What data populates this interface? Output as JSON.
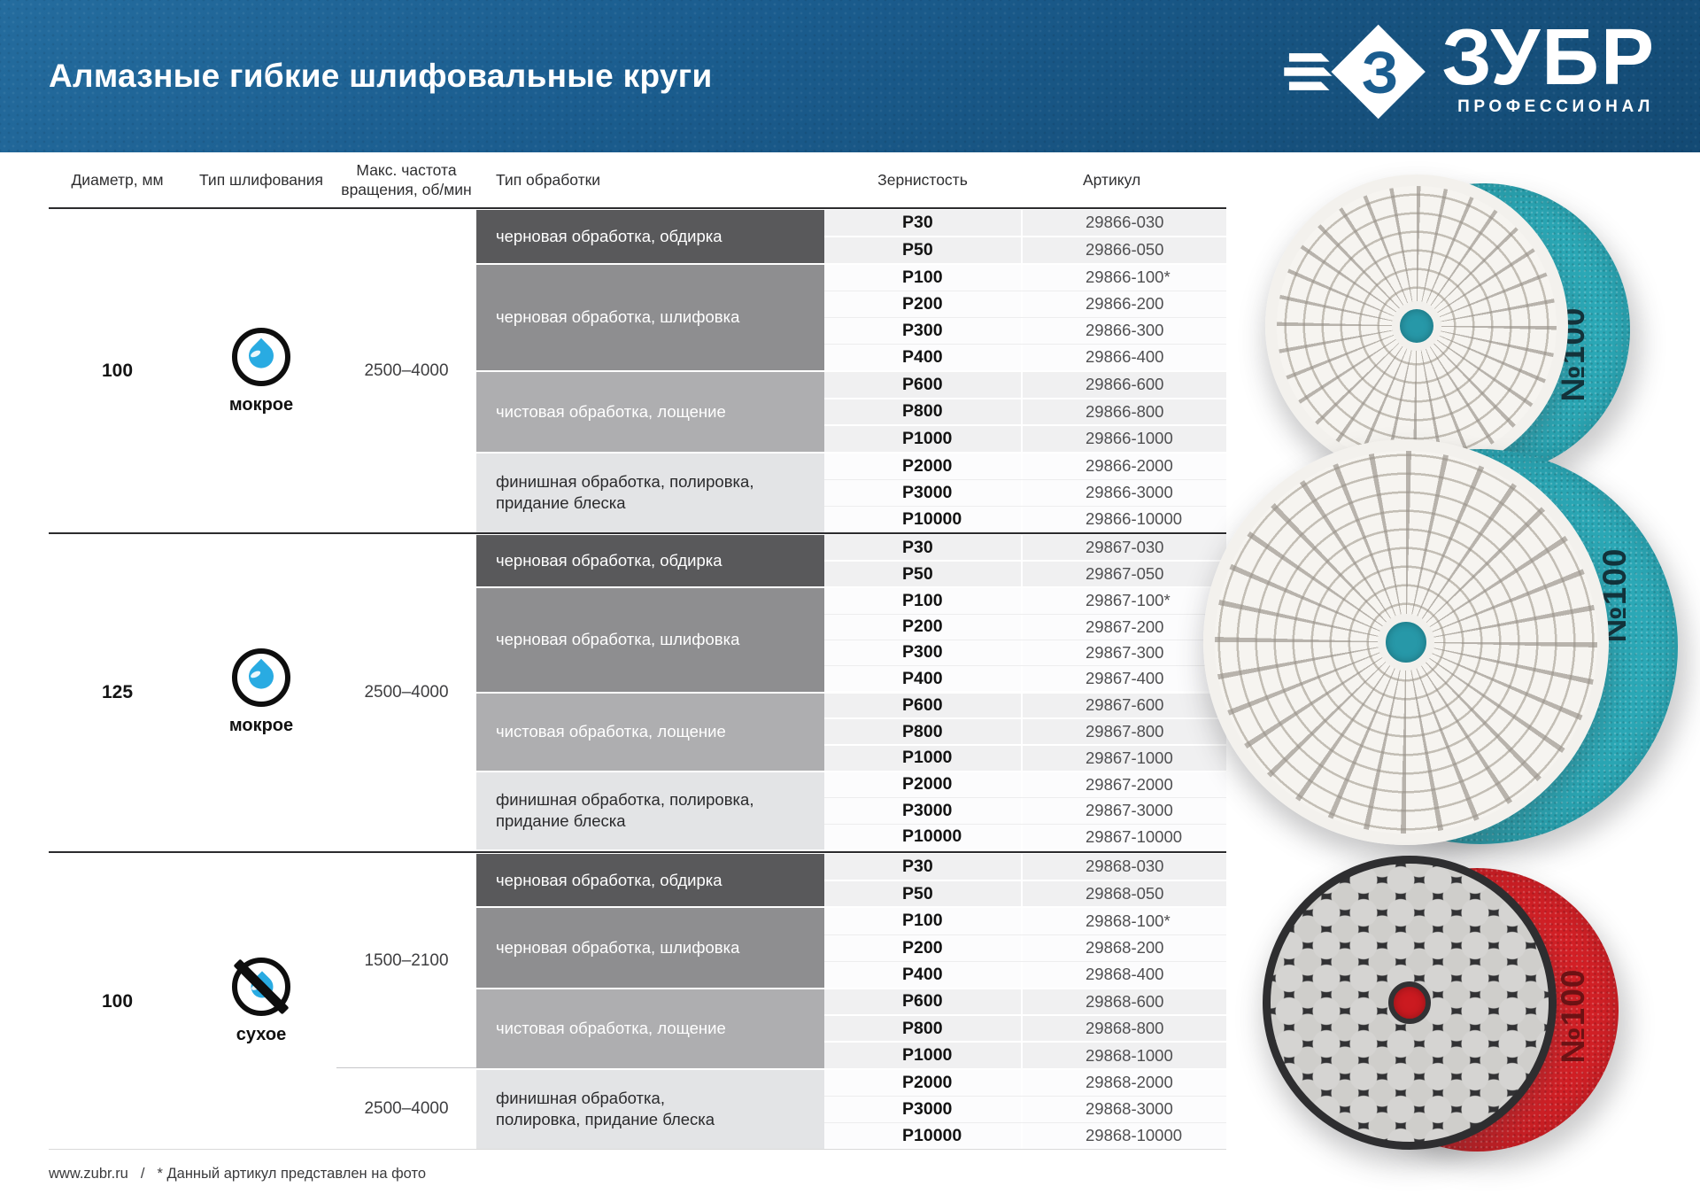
{
  "header": {
    "title": "Алмазные гибкие шлифовальные круги",
    "brand": "ЗУБР",
    "tagline": "ПРОФЕССИОНАЛ",
    "brand_mark_letter": "З"
  },
  "table": {
    "columns": {
      "diameter": "Диаметр, мм",
      "grind_type": "Тип шлифования",
      "rpm": "Макс. частота\nвращения, об/мин",
      "processing": "Тип обработки",
      "grit": "Зернистость",
      "sku": "Артикул"
    },
    "groups": [
      {
        "diameter": "100",
        "grind": {
          "label": "мокрое",
          "dry": false
        },
        "rpm": [
          {
            "value": "2500–4000",
            "rows": 12
          }
        ],
        "blocks": [
          {
            "label": "черновая обработка, обдирка",
            "rows": [
              [
                "P30",
                "29866-030"
              ],
              [
                "P50",
                "29866-050"
              ]
            ]
          },
          {
            "label": "черновая обработка, шлифовка",
            "rows": [
              [
                "P100",
                "29866-100*"
              ],
              [
                "P200",
                "29866-200"
              ],
              [
                "P300",
                "29866-300"
              ],
              [
                "P400",
                "29866-400"
              ]
            ]
          },
          {
            "label": "чистовая обработка, лощение",
            "rows": [
              [
                "P600",
                "29866-600"
              ],
              [
                "P800",
                "29866-800"
              ],
              [
                "P1000",
                "29866-1000"
              ]
            ]
          },
          {
            "label": "финишная обработка, полировка,\nпридание блеска",
            "rows": [
              [
                "P2000",
                "29866-2000"
              ],
              [
                "P3000",
                "29866-3000"
              ],
              [
                "P10000",
                "29866-10000"
              ]
            ]
          }
        ]
      },
      {
        "diameter": "125",
        "grind": {
          "label": "мокрое",
          "dry": false
        },
        "rpm": [
          {
            "value": "2500–4000",
            "rows": 12
          }
        ],
        "blocks": [
          {
            "label": "черновая обработка, обдирка",
            "rows": [
              [
                "P30",
                "29867-030"
              ],
              [
                "P50",
                "29867-050"
              ]
            ]
          },
          {
            "label": "черновая обработка, шлифовка",
            "rows": [
              [
                "P100",
                "29867-100*"
              ],
              [
                "P200",
                "29867-200"
              ],
              [
                "P300",
                "29867-300"
              ],
              [
                "P400",
                "29867-400"
              ]
            ]
          },
          {
            "label": "чистовая обработка, лощение",
            "rows": [
              [
                "P600",
                "29867-600"
              ],
              [
                "P800",
                "29867-800"
              ],
              [
                "P1000",
                "29867-1000"
              ]
            ]
          },
          {
            "label": "финишная обработка, полировка,\nпридание блеска",
            "rows": [
              [
                "P2000",
                "29867-2000"
              ],
              [
                "P3000",
                "29867-3000"
              ],
              [
                "P10000",
                "29867-10000"
              ]
            ]
          }
        ]
      },
      {
        "diameter": "100",
        "grind": {
          "label": "сухое",
          "dry": true
        },
        "rpm": [
          {
            "value": "1500–2100",
            "rows": 8
          },
          {
            "value": "2500–4000",
            "rows": 3
          }
        ],
        "blocks": [
          {
            "label": "черновая обработка, обдирка",
            "rows": [
              [
                "P30",
                "29868-030"
              ],
              [
                "P50",
                "29868-050"
              ]
            ]
          },
          {
            "label": "черновая обработка, шлифовка",
            "rows": [
              [
                "P100",
                "29868-100*"
              ],
              [
                "P200",
                "29868-200"
              ],
              [
                "P400",
                "29868-400"
              ]
            ]
          },
          {
            "label": "чистовая обработка, лощение",
            "rows": [
              [
                "P600",
                "29868-600"
              ],
              [
                "P800",
                "29868-800"
              ],
              [
                "P1000",
                "29868-1000"
              ]
            ]
          },
          {
            "label": "финишная обработка,\nполировка, придание блеска",
            "rows": [
              [
                "P2000",
                "29868-2000"
              ],
              [
                "P3000",
                "29868-3000"
              ],
              [
                "P10000",
                "29868-10000"
              ]
            ]
          }
        ]
      }
    ]
  },
  "discs": [
    {
      "badge": "№100",
      "pattern": "spiral",
      "backing_color": "#2ba8b6",
      "hole_color": "#2798a8",
      "badge_color": "#12333b"
    },
    {
      "badge": "№100",
      "pattern": "spiral",
      "backing_color": "#2ba8b6",
      "hole_color": "#2798a8",
      "badge_color": "#12333b"
    },
    {
      "badge": "№100",
      "pattern": "hex",
      "backing_color": "#d32026",
      "hole_color": "#cb1a20",
      "badge_color": "#6e1214"
    }
  ],
  "footer": {
    "site": "www.zubr.ru",
    "slash": "/",
    "note": "* Данный артикул представлен на фото"
  },
  "colors": {
    "header_blue": "#1b5d8f",
    "drop_blue": "#29abe2",
    "teal_backing": "#2ba8b6",
    "red_backing": "#d32026"
  }
}
